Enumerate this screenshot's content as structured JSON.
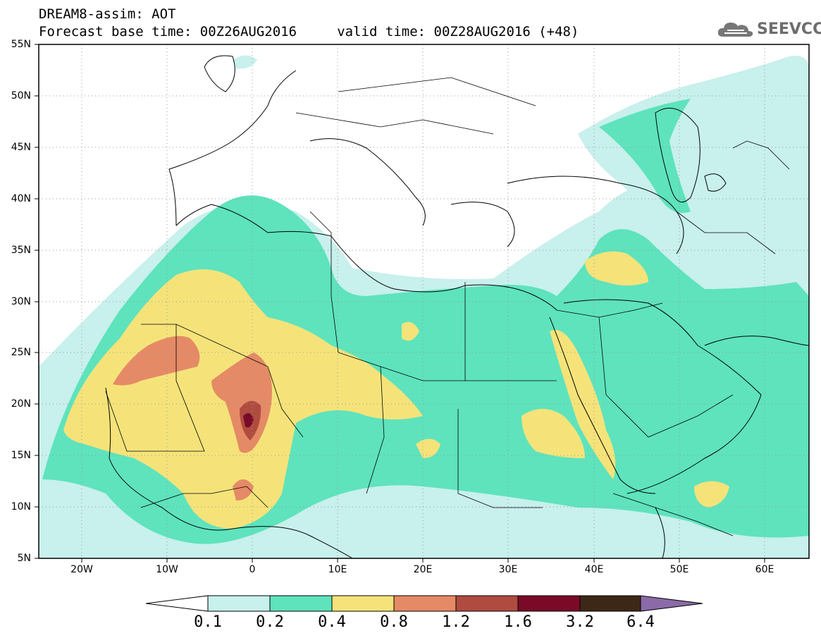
{
  "title": {
    "line1": "DREAM8-assim: AOT",
    "line2": "Forecast base time: 00Z26AUG2016     valid time: 00Z28AUG2016 (+48)"
  },
  "logo": {
    "text": "SEEVCCC",
    "icon": "cloud-logo-icon"
  },
  "map": {
    "lon_range": [
      -25,
      65
    ],
    "lat_range": [
      5,
      55
    ],
    "y_ticks": [
      "55N",
      "50N",
      "45N",
      "40N",
      "35N",
      "30N",
      "25N",
      "20N",
      "15N",
      "10N",
      "5N"
    ],
    "x_ticks": [
      "20W",
      "10W",
      "0",
      "10E",
      "20E",
      "30E",
      "40E",
      "50E",
      "60E"
    ],
    "grid": "dotted"
  },
  "colorbar": {
    "labels": [
      "0.1",
      "0.2",
      "0.4",
      "0.8",
      "1.2",
      "1.6",
      "3.2",
      "6.4"
    ],
    "colors": [
      "#ffffff",
      "#c8f0ec",
      "#5ee3bd",
      "#f5e37a",
      "#e58a66",
      "#b04c3f",
      "#7a0a28",
      "#3d2818",
      "#8b6aa8"
    ]
  },
  "colors": {
    "background": "#ffffff",
    "level1": "#c8f0ec",
    "level2": "#5ee3bd",
    "level3": "#f5e37a",
    "level4": "#e58a66",
    "level5": "#b04c3f",
    "level6": "#7a0a28"
  }
}
